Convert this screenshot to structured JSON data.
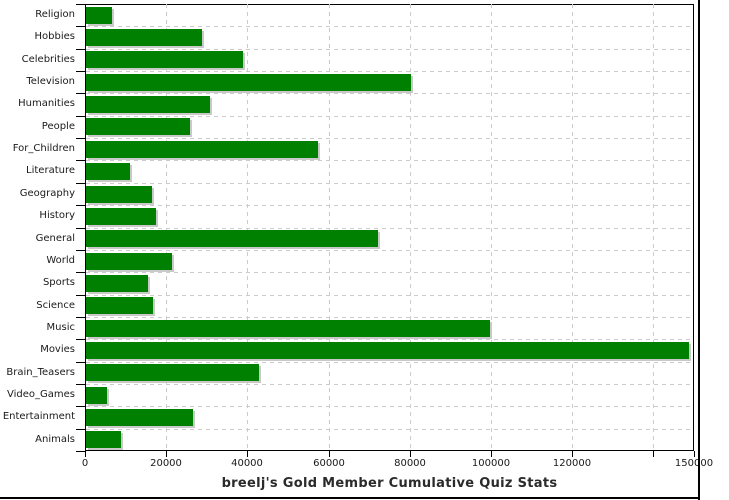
{
  "page": {
    "title": "breelj's Gold Member Cumulative Quiz Stats"
  },
  "chart_data": {
    "type": "bar",
    "orientation": "horizontal",
    "title": "breelj's Gold Member Cumulative Quiz Stats",
    "categories": [
      "Religion",
      "Hobbies",
      "Celebrities",
      "Television",
      "Humanities",
      "People",
      "For_Children",
      "Literature",
      "Geography",
      "History",
      "General",
      "World",
      "Sports",
      "Science",
      "Music",
      "Movies",
      "Brain_Teasers",
      "Video_Games",
      "Entertainment",
      "Animals"
    ],
    "values": [
      6400,
      28600,
      38700,
      80000,
      30600,
      25700,
      57200,
      10900,
      16300,
      17300,
      72000,
      21200,
      15300,
      16500,
      99400,
      148500,
      42700,
      5200,
      26400,
      8600
    ],
    "xlim": [
      0,
      150000
    ],
    "x_ticks": [
      {
        "value": 0,
        "label": "0"
      },
      {
        "value": 20000,
        "label": "20000"
      },
      {
        "value": 40000,
        "label": "40000"
      },
      {
        "value": 60000,
        "label": "60000"
      },
      {
        "value": 80000,
        "label": "80000"
      },
      {
        "value": 100000,
        "label": "100000"
      },
      {
        "value": 120000,
        "label": "120000"
      },
      {
        "value": 140000,
        "label": ""
      },
      {
        "value": 150000,
        "label": "150000"
      }
    ],
    "grid": "dashed, both axes",
    "legend": "none",
    "xlabel": "",
    "ylabel": ""
  },
  "colors": {
    "bar": "#008000",
    "bar_shadow": "#c9c9c9",
    "grid": "#cccccc",
    "axis": "#000000",
    "text": "#1a1a1a",
    "title_text": "#2b2b2b",
    "background": "#ffffff",
    "frame": "#000000"
  }
}
